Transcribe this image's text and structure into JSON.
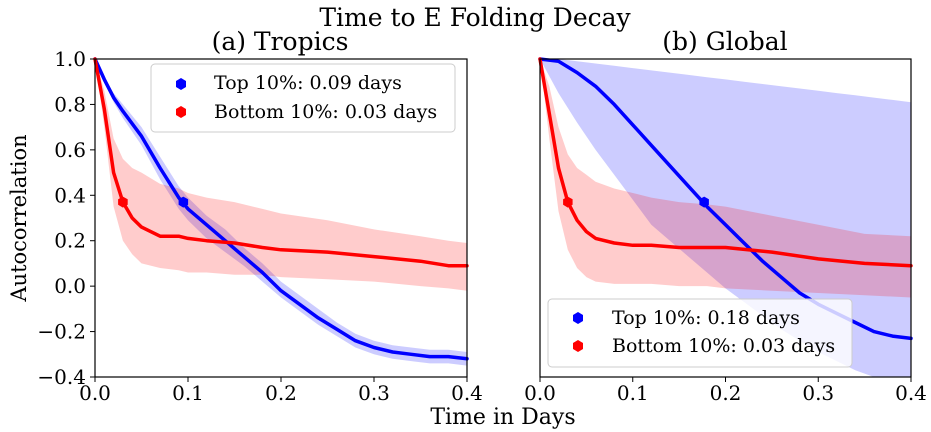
{
  "figure": {
    "suptitle": "Time to E Folding Decay",
    "xlabel": "Time in Days",
    "ylabel": "Autocorrelation"
  },
  "chart_data": [
    {
      "type": "line",
      "title": "(a) Tropics",
      "xlabel": "Time in Days",
      "ylabel": "Autocorrelation",
      "xlim": [
        0.0,
        0.4
      ],
      "ylim": [
        -0.4,
        1.0
      ],
      "xticks": [
        "0.0",
        "0.1",
        "0.2",
        "0.3",
        "0.4"
      ],
      "yticks": [
        "−0.4",
        "−0.2",
        "0.0",
        "0.2",
        "0.4",
        "0.6",
        "0.8",
        "1.0"
      ],
      "legend_position": "top-right",
      "grid": false,
      "series": [
        {
          "name": "Top 10%: 0.09 days",
          "color": "#0000ff",
          "x": [
            0.0,
            0.01,
            0.02,
            0.03,
            0.05,
            0.07,
            0.09,
            0.1,
            0.12,
            0.14,
            0.16,
            0.18,
            0.2,
            0.22,
            0.24,
            0.26,
            0.28,
            0.3,
            0.32,
            0.34,
            0.36,
            0.38,
            0.4
          ],
          "y": [
            1.0,
            0.91,
            0.83,
            0.77,
            0.66,
            0.52,
            0.39,
            0.34,
            0.27,
            0.2,
            0.13,
            0.06,
            -0.02,
            -0.08,
            -0.14,
            -0.19,
            -0.24,
            -0.27,
            -0.29,
            -0.3,
            -0.31,
            -0.31,
            -0.32
          ],
          "band_lower": [
            1.0,
            0.9,
            0.81,
            0.74,
            0.62,
            0.47,
            0.34,
            0.29,
            0.21,
            0.15,
            0.09,
            0.02,
            -0.05,
            -0.11,
            -0.17,
            -0.22,
            -0.27,
            -0.3,
            -0.32,
            -0.33,
            -0.34,
            -0.34,
            -0.35
          ],
          "band_upper": [
            1.0,
            0.92,
            0.85,
            0.8,
            0.7,
            0.57,
            0.44,
            0.39,
            0.31,
            0.25,
            0.17,
            0.1,
            0.02,
            -0.04,
            -0.1,
            -0.16,
            -0.21,
            -0.24,
            -0.26,
            -0.27,
            -0.28,
            -0.28,
            -0.29
          ],
          "efold_marker": {
            "x": 0.095,
            "y": 0.37
          }
        },
        {
          "name": "Bottom 10%: 0.03 days",
          "color": "#ff0000",
          "x": [
            0.0,
            0.01,
            0.02,
            0.03,
            0.04,
            0.05,
            0.07,
            0.09,
            0.1,
            0.12,
            0.15,
            0.18,
            0.2,
            0.25,
            0.3,
            0.35,
            0.38,
            0.4
          ],
          "y": [
            1.0,
            0.78,
            0.5,
            0.37,
            0.3,
            0.26,
            0.22,
            0.22,
            0.21,
            0.2,
            0.19,
            0.17,
            0.16,
            0.15,
            0.13,
            0.11,
            0.09,
            0.09
          ],
          "band_lower": [
            1.0,
            0.7,
            0.35,
            0.2,
            0.14,
            0.1,
            0.08,
            0.07,
            0.06,
            0.06,
            0.05,
            0.05,
            0.04,
            0.03,
            0.02,
            0.0,
            -0.01,
            -0.02
          ],
          "band_upper": [
            1.0,
            0.86,
            0.65,
            0.56,
            0.52,
            0.5,
            0.45,
            0.43,
            0.41,
            0.39,
            0.37,
            0.34,
            0.32,
            0.29,
            0.25,
            0.22,
            0.2,
            0.19
          ],
          "efold_marker": {
            "x": 0.03,
            "y": 0.37
          }
        }
      ]
    },
    {
      "type": "line",
      "title": "(b) Global",
      "xlabel": "Time in Days",
      "ylabel": "Autocorrelation",
      "xlim": [
        0.0,
        0.4
      ],
      "ylim": [
        -0.4,
        1.0
      ],
      "xticks": [
        "0.0",
        "0.1",
        "0.2",
        "0.3",
        "0.4"
      ],
      "yticks": [],
      "legend_position": "bottom-center",
      "grid": false,
      "series": [
        {
          "name": "Top 10%: 0.18 days",
          "color": "#0000ff",
          "x": [
            0.0,
            0.02,
            0.04,
            0.06,
            0.08,
            0.1,
            0.12,
            0.14,
            0.16,
            0.18,
            0.2,
            0.22,
            0.24,
            0.26,
            0.28,
            0.3,
            0.32,
            0.34,
            0.36,
            0.38,
            0.4
          ],
          "y": [
            1.0,
            0.99,
            0.94,
            0.88,
            0.8,
            0.71,
            0.62,
            0.53,
            0.44,
            0.35,
            0.27,
            0.19,
            0.11,
            0.04,
            -0.03,
            -0.08,
            -0.12,
            -0.16,
            -0.2,
            -0.22,
            -0.23
          ],
          "band_lower": [
            1.0,
            0.85,
            0.72,
            0.6,
            0.49,
            0.38,
            0.27,
            0.2,
            0.13,
            0.06,
            -0.01,
            -0.07,
            -0.13,
            -0.19,
            -0.24,
            -0.29,
            -0.33,
            -0.37,
            -0.4,
            -0.4,
            -0.4
          ],
          "band_upper": [
            1.0,
            1.0,
            0.99,
            0.98,
            0.97,
            0.96,
            0.95,
            0.94,
            0.93,
            0.92,
            0.91,
            0.9,
            0.89,
            0.88,
            0.87,
            0.86,
            0.85,
            0.84,
            0.83,
            0.82,
            0.81
          ],
          "efold_marker": {
            "x": 0.177,
            "y": 0.37
          }
        },
        {
          "name": "Bottom 10%: 0.03 days",
          "color": "#ff0000",
          "x": [
            0.0,
            0.01,
            0.02,
            0.03,
            0.04,
            0.05,
            0.06,
            0.08,
            0.1,
            0.12,
            0.15,
            0.18,
            0.2,
            0.25,
            0.3,
            0.35,
            0.4
          ],
          "y": [
            1.0,
            0.76,
            0.52,
            0.37,
            0.29,
            0.24,
            0.21,
            0.19,
            0.18,
            0.18,
            0.17,
            0.17,
            0.17,
            0.15,
            0.12,
            0.1,
            0.09
          ],
          "band_lower": [
            1.0,
            0.65,
            0.33,
            0.16,
            0.08,
            0.04,
            0.02,
            0.01,
            0.01,
            0.01,
            0.0,
            0.0,
            -0.01,
            -0.02,
            -0.03,
            -0.04,
            -0.05
          ],
          "band_upper": [
            1.0,
            0.88,
            0.7,
            0.58,
            0.52,
            0.49,
            0.46,
            0.43,
            0.41,
            0.39,
            0.37,
            0.36,
            0.35,
            0.31,
            0.27,
            0.23,
            0.22
          ],
          "efold_marker": {
            "x": 0.03,
            "y": 0.37
          }
        }
      ]
    }
  ]
}
